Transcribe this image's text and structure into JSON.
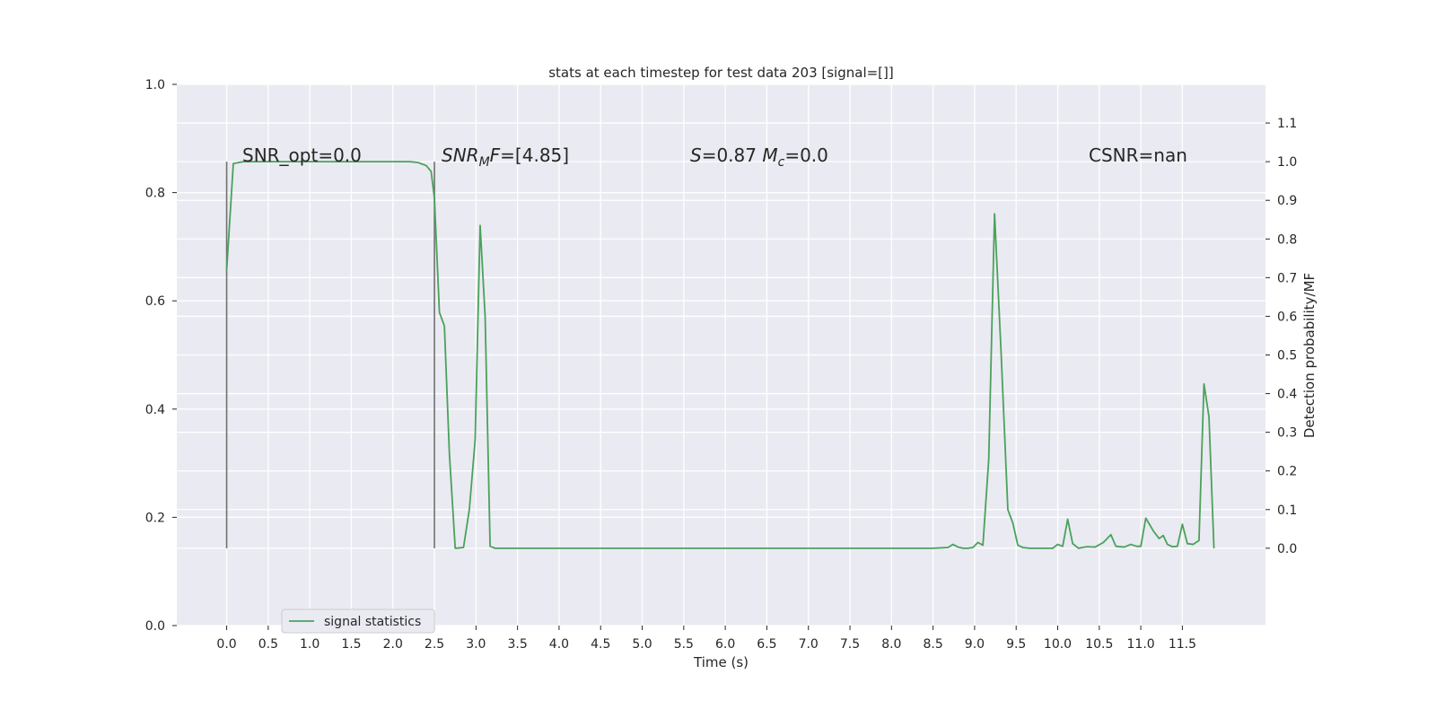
{
  "chart_data": {
    "type": "line",
    "title": "stats at each timestep for test data 203 [signal=[]]",
    "xlabel": "Time (s)",
    "ylabel_left": "",
    "ylabel_right": "Detection probability/MF",
    "left_ylim": [
      0,
      1
    ],
    "left_yticks": [
      "0.0",
      "0.2",
      "0.4",
      "0.6",
      "0.8",
      "1.0"
    ],
    "right_ylim": [
      -0.2,
      1.2
    ],
    "right_yticks": [
      "0.0",
      "0.1",
      "0.2",
      "0.3",
      "0.4",
      "0.5",
      "0.6",
      "0.7",
      "0.8",
      "0.9",
      "1.0",
      "1.1"
    ],
    "xlim": [
      -0.6,
      12.5
    ],
    "xticks": [
      "0.0",
      "0.5",
      "1.0",
      "1.5",
      "2.0",
      "2.5",
      "3.0",
      "3.5",
      "4.0",
      "4.5",
      "5.0",
      "5.5",
      "6.0",
      "6.5",
      "7.0",
      "7.5",
      "8.0",
      "8.5",
      "9.0",
      "9.5",
      "10.0",
      "10.5",
      "11.0",
      "11.5"
    ],
    "grid": true,
    "legend_position": "lower-left",
    "vlines": [
      0.0,
      2.5
    ],
    "vline_range": [
      0,
      1
    ],
    "annotations": [
      {
        "parts": [
          {
            "t": "SNR_opt=0.0",
            "i": false
          }
        ]
      },
      {
        "parts": [
          {
            "t": "SNR",
            "i": true
          },
          {
            "t": "M",
            "i": true,
            "sub": true
          },
          {
            "t": "F",
            "i": true
          },
          {
            "t": "=[4.85]",
            "i": false
          }
        ]
      },
      {
        "parts": [
          {
            "t": "S",
            "i": true
          },
          {
            "t": "=0.87   ",
            "i": false
          },
          {
            "t": "M",
            "i": true
          },
          {
            "t": "c",
            "i": true,
            "sub": true
          },
          {
            "t": "=0.0",
            "i": false
          }
        ]
      },
      {
        "parts": [
          {
            "t": "CSNR=nan",
            "i": false
          }
        ]
      }
    ],
    "series": [
      {
        "name": "signal statistics",
        "color": "#4aa25a",
        "x": [
          0.0,
          0.08,
          0.2,
          0.5,
          1.0,
          1.5,
          2.0,
          2.2,
          2.3,
          2.4,
          2.46,
          2.5,
          2.56,
          2.62,
          2.68,
          2.75,
          2.85,
          2.92,
          2.99,
          3.05,
          3.11,
          3.17,
          3.23,
          3.5,
          4.0,
          6.0,
          8.0,
          8.5,
          8.68,
          8.74,
          8.8,
          8.86,
          8.92,
          8.98,
          9.04,
          9.1,
          9.17,
          9.24,
          9.32,
          9.4,
          9.46,
          9.52,
          9.58,
          9.66,
          9.8,
          9.94,
          10.0,
          10.06,
          10.12,
          10.18,
          10.25,
          10.35,
          10.45,
          10.55,
          10.64,
          10.7,
          10.8,
          10.88,
          10.95,
          11.0,
          11.06,
          11.15,
          11.22,
          11.27,
          11.32,
          11.38,
          11.44,
          11.5,
          11.56,
          11.63,
          11.7,
          11.76,
          11.82,
          11.88
        ],
        "y": [
          0.72,
          0.995,
          1.0,
          1.0,
          1.0,
          1.0,
          1.0,
          1.0,
          0.998,
          0.99,
          0.975,
          0.905,
          0.61,
          0.575,
          0.245,
          0.0,
          0.002,
          0.1,
          0.28,
          0.835,
          0.6,
          0.005,
          0.0,
          0.0,
          0.0,
          0.0,
          0.0,
          0.0,
          0.002,
          0.01,
          0.003,
          0.0,
          0.0,
          0.002,
          0.015,
          0.008,
          0.23,
          0.865,
          0.5,
          0.1,
          0.065,
          0.008,
          0.002,
          0.0,
          0.0,
          0.0,
          0.01,
          0.005,
          0.075,
          0.012,
          0.0,
          0.004,
          0.003,
          0.015,
          0.035,
          0.005,
          0.003,
          0.01,
          0.005,
          0.005,
          0.078,
          0.045,
          0.025,
          0.033,
          0.01,
          0.004,
          0.005,
          0.062,
          0.012,
          0.01,
          0.02,
          0.425,
          0.34,
          0.0
        ]
      }
    ]
  }
}
